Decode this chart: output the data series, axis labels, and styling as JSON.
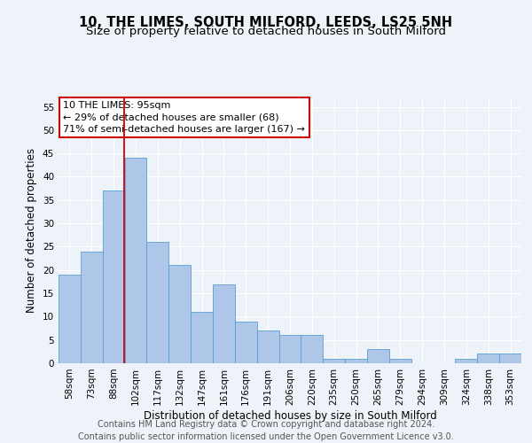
{
  "title": "10, THE LIMES, SOUTH MILFORD, LEEDS, LS25 5NH",
  "subtitle": "Size of property relative to detached houses in South Milford",
  "xlabel": "Distribution of detached houses by size in South Milford",
  "ylabel": "Number of detached properties",
  "footer_line1": "Contains HM Land Registry data © Crown copyright and database right 2024.",
  "footer_line2": "Contains public sector information licensed under the Open Government Licence v3.0.",
  "categories": [
    "58sqm",
    "73sqm",
    "88sqm",
    "102sqm",
    "117sqm",
    "132sqm",
    "147sqm",
    "161sqm",
    "176sqm",
    "191sqm",
    "206sqm",
    "220sqm",
    "235sqm",
    "250sqm",
    "265sqm",
    "279sqm",
    "294sqm",
    "309sqm",
    "324sqm",
    "338sqm",
    "353sqm"
  ],
  "values": [
    19,
    24,
    37,
    44,
    26,
    21,
    11,
    17,
    9,
    7,
    6,
    6,
    1,
    1,
    3,
    1,
    0,
    0,
    1,
    2,
    2
  ],
  "bar_color": "#aec6e8",
  "bar_edge_color": "#5a9fd4",
  "property_label": "10 THE LIMES: 95sqm",
  "annotation_line1": "← 29% of detached houses are smaller (68)",
  "annotation_line2": "71% of semi-detached houses are larger (167) →",
  "vline_color": "#cc0000",
  "annotation_box_color": "#cc0000",
  "ylim": [
    0,
    57
  ],
  "yticks": [
    0,
    5,
    10,
    15,
    20,
    25,
    30,
    35,
    40,
    45,
    50,
    55
  ],
  "background_color": "#eef2f9",
  "grid_color": "#ffffff",
  "title_fontsize": 10.5,
  "subtitle_fontsize": 9.5,
  "xlabel_fontsize": 8.5,
  "ylabel_fontsize": 8.5,
  "tick_fontsize": 7.5,
  "annotation_fontsize": 8,
  "footer_fontsize": 7
}
